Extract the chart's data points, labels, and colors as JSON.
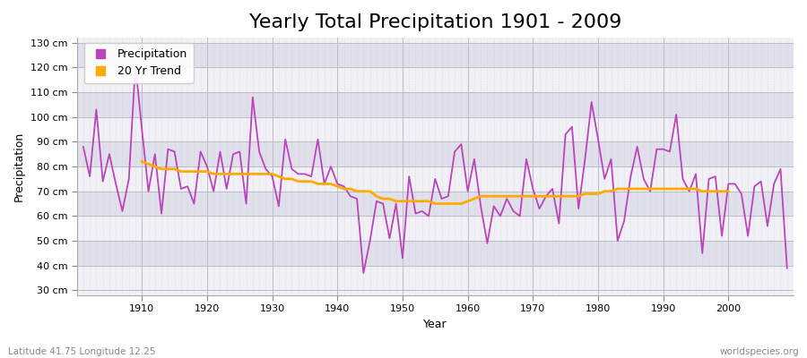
{
  "title": "Yearly Total Precipitation 1901 - 2009",
  "xlabel": "Year",
  "ylabel": "Precipitation",
  "subtitle_left": "Latitude 41.75 Longitude 12.25",
  "subtitle_right": "worldspecies.org",
  "years": [
    1901,
    1902,
    1903,
    1904,
    1905,
    1906,
    1907,
    1908,
    1909,
    1910,
    1911,
    1912,
    1913,
    1914,
    1915,
    1916,
    1917,
    1918,
    1919,
    1920,
    1921,
    1922,
    1923,
    1924,
    1925,
    1926,
    1927,
    1928,
    1929,
    1930,
    1931,
    1932,
    1933,
    1934,
    1935,
    1936,
    1937,
    1938,
    1939,
    1940,
    1941,
    1942,
    1943,
    1944,
    1945,
    1946,
    1947,
    1948,
    1949,
    1950,
    1951,
    1952,
    1953,
    1954,
    1955,
    1956,
    1957,
    1958,
    1959,
    1960,
    1961,
    1962,
    1963,
    1964,
    1965,
    1966,
    1967,
    1968,
    1969,
    1970,
    1971,
    1972,
    1973,
    1974,
    1975,
    1976,
    1977,
    1978,
    1979,
    1980,
    1981,
    1982,
    1983,
    1984,
    1985,
    1986,
    1987,
    1988,
    1989,
    1990,
    1991,
    1992,
    1993,
    1994,
    1995,
    1996,
    1997,
    1998,
    1999,
    2000,
    2001,
    2002,
    2003,
    2004,
    2005,
    2006,
    2007,
    2008,
    2009
  ],
  "precipitation": [
    88,
    76,
    103,
    74,
    85,
    73,
    62,
    75,
    121,
    95,
    70,
    85,
    61,
    87,
    86,
    71,
    72,
    65,
    86,
    80,
    70,
    86,
    71,
    85,
    86,
    65,
    108,
    86,
    79,
    76,
    64,
    91,
    79,
    77,
    77,
    76,
    91,
    73,
    80,
    73,
    72,
    68,
    67,
    37,
    50,
    66,
    65,
    51,
    65,
    43,
    76,
    61,
    62,
    60,
    75,
    67,
    68,
    86,
    89,
    70,
    83,
    64,
    49,
    64,
    60,
    67,
    62,
    60,
    83,
    71,
    63,
    68,
    71,
    57,
    93,
    96,
    63,
    83,
    106,
    91,
    75,
    83,
    50,
    58,
    76,
    88,
    75,
    70,
    87,
    87,
    86,
    101,
    75,
    70,
    77,
    45,
    75,
    76,
    52,
    73,
    73,
    69,
    52,
    72,
    74,
    56,
    73,
    79,
    39
  ],
  "trend_years": [
    1910,
    1911,
    1912,
    1913,
    1914,
    1915,
    1916,
    1917,
    1918,
    1919,
    1920,
    1921,
    1922,
    1923,
    1924,
    1925,
    1926,
    1927,
    1928,
    1929,
    1930,
    1931,
    1932,
    1933,
    1934,
    1935,
    1936,
    1937,
    1938,
    1939,
    1940,
    1941,
    1942,
    1943,
    1944,
    1945,
    1946,
    1947,
    1948,
    1949,
    1950,
    1951,
    1952,
    1953,
    1954,
    1955,
    1956,
    1957,
    1958,
    1959,
    1960,
    1961,
    1962,
    1963,
    1964,
    1965,
    1966,
    1967,
    1968,
    1969,
    1970,
    1971,
    1972,
    1973,
    1974,
    1975,
    1976,
    1977,
    1978,
    1979,
    1980,
    1981,
    1982,
    1983,
    1984,
    1985,
    1986,
    1987,
    1988,
    1989,
    1990,
    1991,
    1992,
    1993,
    1994,
    1995,
    1996,
    1997,
    1998,
    1999,
    2000
  ],
  "trend_values": [
    82,
    81,
    80,
    79,
    79,
    79,
    78,
    78,
    78,
    78,
    78,
    77,
    77,
    77,
    77,
    77,
    77,
    77,
    77,
    77,
    77,
    76,
    75,
    75,
    74,
    74,
    74,
    73,
    73,
    73,
    72,
    71,
    71,
    70,
    70,
    70,
    68,
    67,
    67,
    66,
    66,
    66,
    66,
    66,
    66,
    65,
    65,
    65,
    65,
    65,
    66,
    67,
    68,
    68,
    68,
    68,
    68,
    68,
    68,
    68,
    68,
    68,
    68,
    68,
    68,
    68,
    68,
    68,
    69,
    69,
    69,
    70,
    70,
    71,
    71,
    71,
    71,
    71,
    71,
    71,
    71,
    71,
    71,
    71,
    71,
    71,
    70,
    70,
    70,
    70,
    70
  ],
  "precip_color": "#bb44bb",
  "trend_color": "#ffaa00",
  "bg_color_light": "#f0f0f5",
  "bg_color_dark": "#e0e0eb",
  "ylim": [
    28,
    132
  ],
  "yticks": [
    30,
    40,
    50,
    60,
    70,
    80,
    90,
    100,
    110,
    120,
    130
  ],
  "ytick_labels": [
    "30 cm",
    "40 cm",
    "50 cm",
    "60 cm",
    "70 cm",
    "80 cm",
    "90 cm",
    "100 cm",
    "110 cm",
    "120 cm",
    "130 cm"
  ],
  "xticks": [
    1910,
    1920,
    1930,
    1940,
    1950,
    1960,
    1970,
    1980,
    1990,
    2000
  ],
  "title_fontsize": 16,
  "axis_fontsize": 9,
  "tick_fontsize": 8,
  "legend_fontsize": 9
}
